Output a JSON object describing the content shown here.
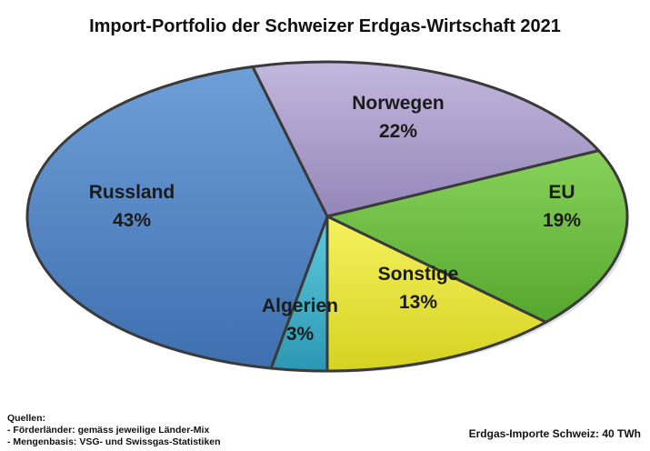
{
  "chart_data": {
    "type": "pie",
    "title": "Import-Portfolio der Schweizer Erdgas-Wirtschaft 2021",
    "slices": [
      {
        "label": "Russland",
        "value": 43,
        "value_label": "43%",
        "color": "#4a7fc1"
      },
      {
        "label": "Norwegen",
        "value": 22,
        "value_label": "22%",
        "color": "#a99bc8"
      },
      {
        "label": "EU",
        "value": 19,
        "value_label": "19%",
        "color": "#6cbc3e"
      },
      {
        "label": "Sonstige",
        "value": 13,
        "value_label": "13%",
        "color": "#e9e53b"
      },
      {
        "label": "Algerien",
        "value": 3,
        "value_label": "3%",
        "color": "#3fb0c9"
      }
    ],
    "legend": "none"
  },
  "footer": {
    "sources_heading": "Quellen:",
    "sources": [
      "- Förderländer: gemäss jeweilige Länder-Mix",
      "- Mengenbasis: VSG- und Swissgas-Statistiken"
    ],
    "total": "Erdgas-Importe Schweiz: 40 TWh"
  }
}
